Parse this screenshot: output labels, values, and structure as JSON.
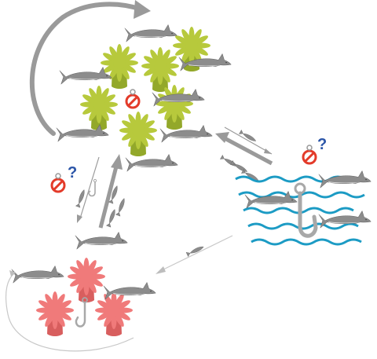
{
  "colors": {
    "shark_body": "#8c8c8c",
    "shark_dark": "#5f5f5f",
    "shark_belly": "#e9e9e9",
    "anemone_green": "#b7c93c",
    "anemone_green_dark": "#93a82a",
    "anemone_pink": "#f07a7a",
    "anemone_pink_dark": "#d85e5e",
    "arrow_gray": "#9a9a9a",
    "arrow_light": "#c8c8c8",
    "hook_gray": "#a8a8a8",
    "wave_blue": "#1c9bc4",
    "no_sign_red": "#e33b2a",
    "no_sign_orange": "#f08a3a",
    "question_blue": "#2b55a8"
  },
  "icons": {
    "healthy_habitat": "sea-anemone-icon",
    "degraded_habitat": "sea-anemone-icon",
    "shark": "reef-shark-icon",
    "fishing": "fish-hook-icon",
    "ocean": "wave-icon",
    "uncertain_protection": "no-fishing-icon",
    "uncertainty": "question-mark-icon"
  },
  "markers": {
    "question_mark": "?"
  }
}
